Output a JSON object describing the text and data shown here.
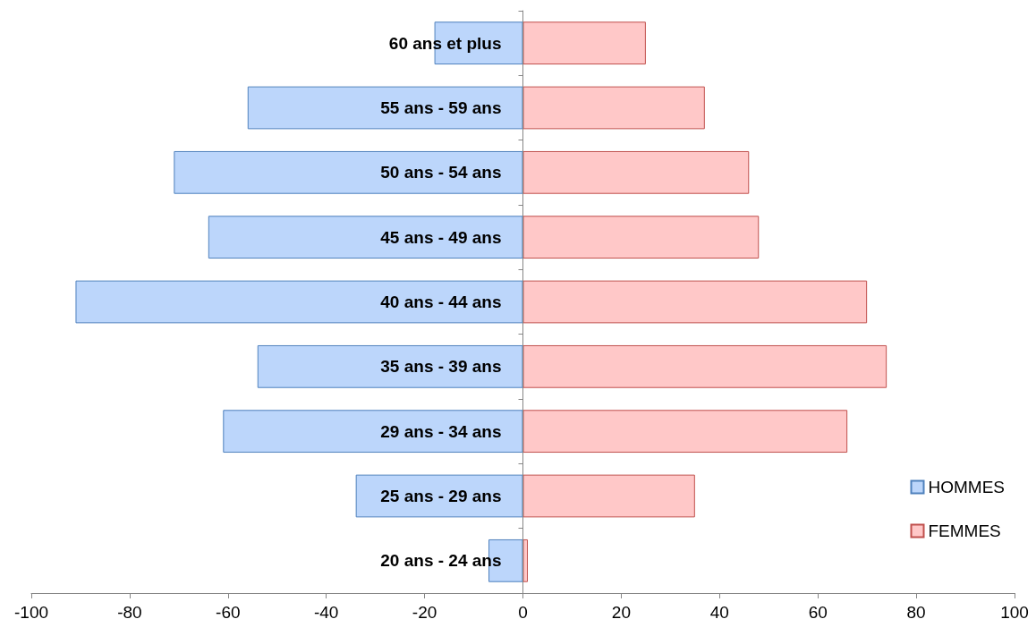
{
  "chart_data": {
    "type": "bar",
    "orientation": "horizontal",
    "categories": [
      "60 ans et plus",
      "55 ans - 59 ans",
      "50 ans - 54 ans",
      "45 ans - 49 ans",
      "40 ans - 44 ans",
      "35 ans - 39 ans",
      "29 ans - 34 ans",
      "25 ans - 29 ans",
      "20 ans - 24 ans"
    ],
    "series": [
      {
        "name": "HOMMES",
        "color": "#bcd6fb",
        "values": [
          -18,
          -56,
          -71,
          -64,
          -91,
          -54,
          -61,
          -34,
          -7
        ]
      },
      {
        "name": "FEMMES",
        "color": "#ffc8c8",
        "values": [
          25,
          37,
          46,
          48,
          70,
          74,
          66,
          35,
          1
        ]
      }
    ],
    "xlim": [
      -100,
      100
    ],
    "xticks": [
      -100,
      -80,
      -60,
      -40,
      -20,
      0,
      20,
      40,
      60,
      80,
      100
    ],
    "stacked": true,
    "grid": false,
    "legend": "bottom right"
  }
}
